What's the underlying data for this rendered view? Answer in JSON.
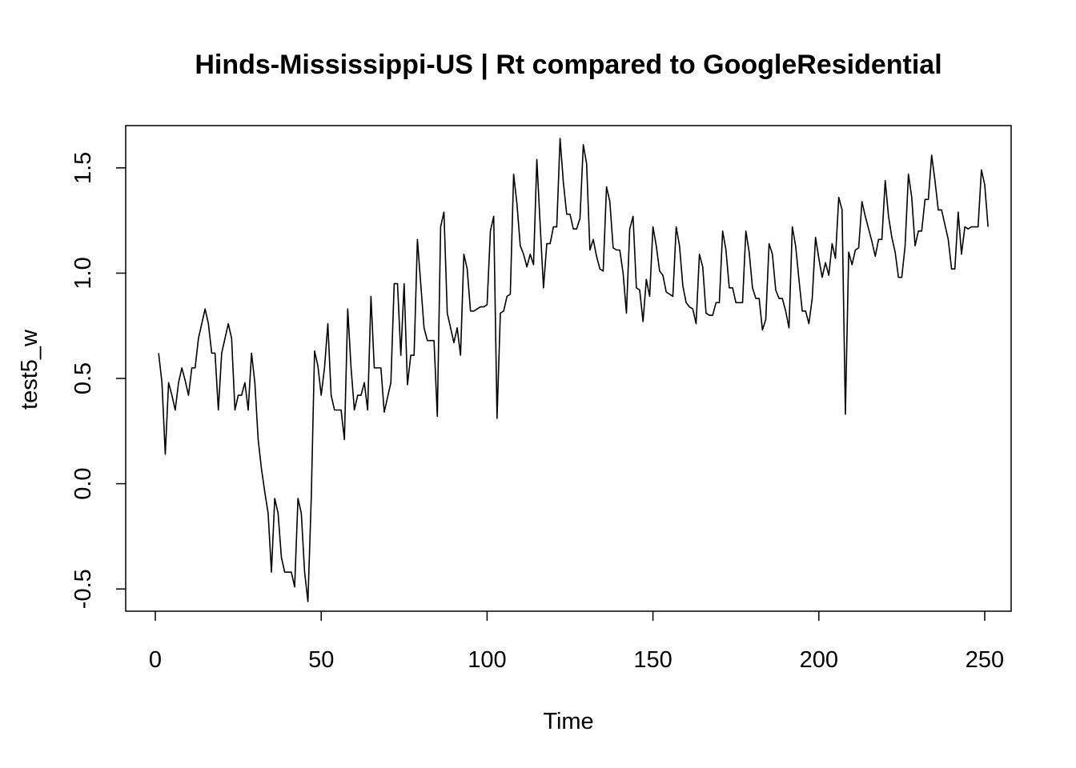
{
  "chart_data": {
    "type": "line",
    "title": "Hinds-Mississippi-US | Rt compared to GoogleResidential",
    "xlabel": "Time",
    "ylabel": "test5_w",
    "xlim": [
      1,
      248
    ],
    "ylim": [
      -0.56,
      1.64
    ],
    "x_ticks": [
      0,
      50,
      100,
      150,
      200,
      250
    ],
    "x_tick_labels": [
      "0",
      "50",
      "100",
      "150",
      "200",
      "250"
    ],
    "y_ticks": [
      -0.5,
      0.0,
      0.5,
      1.0,
      1.5
    ],
    "y_tick_labels": [
      "-0.5",
      "0.0",
      "0.5",
      "1.0",
      "1.5"
    ],
    "grid": false,
    "legend": "none",
    "series": [
      {
        "values": [
          0.62,
          0.48,
          0.14,
          0.48,
          0.42,
          0.35,
          0.48,
          0.55,
          0.49,
          0.42,
          0.55,
          0.55,
          0.69,
          0.76,
          0.83,
          0.76,
          0.62,
          0.62,
          0.35,
          0.62,
          0.69,
          0.76,
          0.69,
          0.35,
          0.42,
          0.42,
          0.48,
          0.35,
          0.62,
          0.48,
          0.21,
          0.07,
          -0.04,
          -0.14,
          -0.42,
          -0.07,
          -0.14,
          -0.35,
          -0.42,
          -0.42,
          -0.42,
          -0.49,
          -0.07,
          -0.14,
          -0.42,
          -0.56,
          -0.07,
          0.63,
          0.56,
          0.42,
          0.55,
          0.76,
          0.42,
          0.35,
          0.35,
          0.35,
          0.21,
          0.83,
          0.55,
          0.35,
          0.42,
          0.42,
          0.48,
          0.35,
          0.89,
          0.55,
          0.55,
          0.55,
          0.34,
          0.41,
          0.48,
          0.95,
          0.95,
          0.61,
          0.95,
          0.47,
          0.61,
          0.61,
          1.16,
          0.95,
          0.74,
          0.68,
          0.68,
          0.68,
          0.32,
          1.22,
          1.29,
          0.81,
          0.74,
          0.67,
          0.74,
          0.61,
          1.09,
          1.02,
          0.82,
          0.82,
          0.83,
          0.84,
          0.84,
          0.85,
          1.2,
          1.27,
          0.31,
          0.81,
          0.82,
          0.89,
          0.9,
          1.47,
          1.33,
          1.13,
          1.09,
          1.03,
          1.09,
          1.04,
          1.54,
          1.23,
          0.93,
          1.14,
          1.14,
          1.22,
          1.22,
          1.64,
          1.43,
          1.28,
          1.28,
          1.21,
          1.21,
          1.26,
          1.61,
          1.52,
          1.11,
          1.16,
          1.08,
          1.02,
          1.01,
          1.41,
          1.34,
          1.12,
          1.11,
          1.11,
          1.0,
          0.81,
          1.21,
          1.27,
          0.93,
          0.92,
          0.77,
          0.97,
          0.89,
          1.22,
          1.13,
          1.01,
          0.99,
          0.91,
          0.9,
          0.89,
          1.22,
          1.13,
          0.94,
          0.86,
          0.84,
          0.83,
          0.76,
          1.09,
          1.03,
          0.81,
          0.8,
          0.8,
          0.86,
          0.86,
          1.2,
          1.11,
          0.93,
          0.93,
          0.86,
          0.86,
          0.86,
          1.2,
          1.1,
          0.93,
          0.88,
          0.88,
          0.73,
          0.78,
          1.14,
          1.09,
          0.92,
          0.88,
          0.88,
          0.82,
          0.74,
          1.22,
          1.13,
          0.97,
          0.82,
          0.82,
          0.76,
          0.88,
          1.17,
          1.07,
          0.98,
          1.05,
          0.99,
          1.14,
          1.07,
          1.36,
          1.3,
          0.33,
          1.1,
          1.04,
          1.11,
          1.12,
          1.34,
          1.27,
          1.21,
          1.15,
          1.08,
          1.16,
          1.16,
          1.44,
          1.27,
          1.17,
          1.1,
          0.98,
          0.98,
          1.13,
          1.47,
          1.36,
          1.13,
          1.2,
          1.2,
          1.35,
          1.35,
          1.56,
          1.44,
          1.3,
          1.3,
          1.23,
          1.16,
          1.02,
          1.02,
          1.29,
          1.09,
          1.22,
          1.21,
          1.22,
          1.22,
          1.22,
          1.49,
          1.42,
          1.22
        ]
      }
    ]
  }
}
